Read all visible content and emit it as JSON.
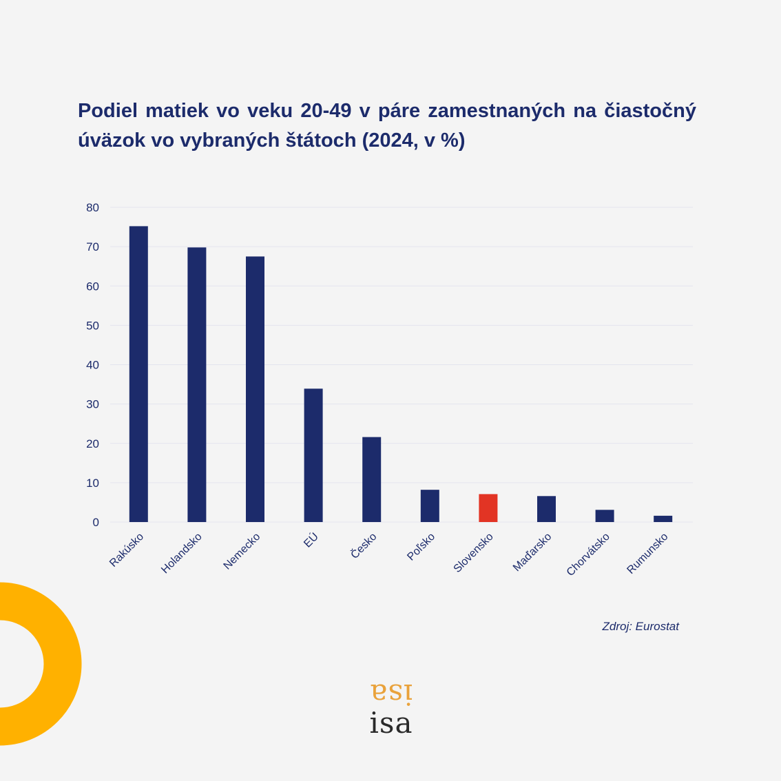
{
  "header": {
    "title": "Podiel matiek vo veku 20-49 v páre zamestnaných na čiastočný úväzok vo vybraných štátoch (2024, v %)"
  },
  "chart_data": {
    "type": "bar",
    "title": "Podiel matiek vo veku 20-49 v páre zamestnaných na čiastočný úväzok vo vybraných štátoch (2024, v %)",
    "categories": [
      "Rakúsko",
      "Holandsko",
      "Nemecko",
      "EÚ",
      "Česko",
      "Poľsko",
      "Slovensko",
      "Maďarsko",
      "Chorvátsko",
      "Rumunsko"
    ],
    "values": [
      75.2,
      69.8,
      67.5,
      33.9,
      21.6,
      8.2,
      7.1,
      6.6,
      3.1,
      1.6
    ],
    "highlight": "Slovensko",
    "xlabel": "",
    "ylabel": "",
    "ylim": [
      0,
      80
    ],
    "yticks": [
      0,
      10,
      20,
      30,
      40,
      50,
      60,
      70,
      80
    ],
    "grid": true,
    "legend": "none",
    "colors": {
      "bar": "#1c2b6b",
      "highlight": "#e23424",
      "grid": "#e3e4ee",
      "text": "#1c2b6b"
    }
  },
  "footer": {
    "source": "Zdroj: Eurostat",
    "logo_text": "isa",
    "logo_mirror_text": "isa"
  },
  "decoration": {
    "ring_color": "#ffb100"
  }
}
